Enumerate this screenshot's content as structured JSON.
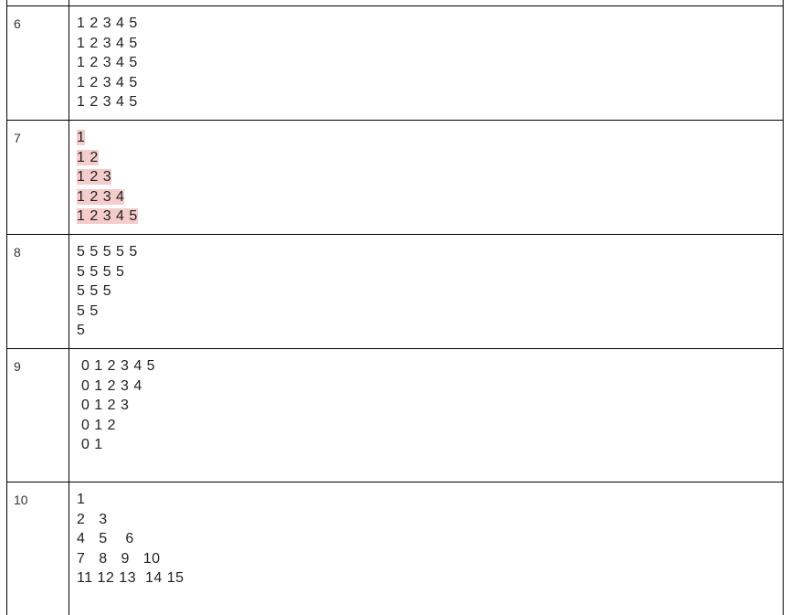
{
  "rows": [
    {
      "number": "6",
      "lines": [
        "1 2 3 4 5",
        "1 2 3 4 5",
        "1 2 3 4 5",
        "1 2 3 4 5",
        "1 2 3 4 5"
      ]
    },
    {
      "number": "7",
      "lines": [
        "1",
        "1 2",
        "1 2 3",
        "1 2 3 4",
        "1 2 3 4 5"
      ]
    },
    {
      "number": "8",
      "lines": [
        "5 5 5 5 5",
        "5 5 5 5",
        "5 5 5",
        "5 5",
        "5"
      ]
    },
    {
      "number": "9",
      "lines": [
        " 0 1 2 3 4 5",
        " 0 1 2 3 4",
        " 0 1 2 3",
        " 0 1 2",
        " 0 1"
      ]
    },
    {
      "number": "10",
      "lines": [
        "1",
        "2   3",
        "4   5    6",
        "7   8   9   10",
        "11 12 13  14 15"
      ]
    }
  ],
  "colors": {
    "highlight": "#f4cccc",
    "border": "#000000"
  }
}
